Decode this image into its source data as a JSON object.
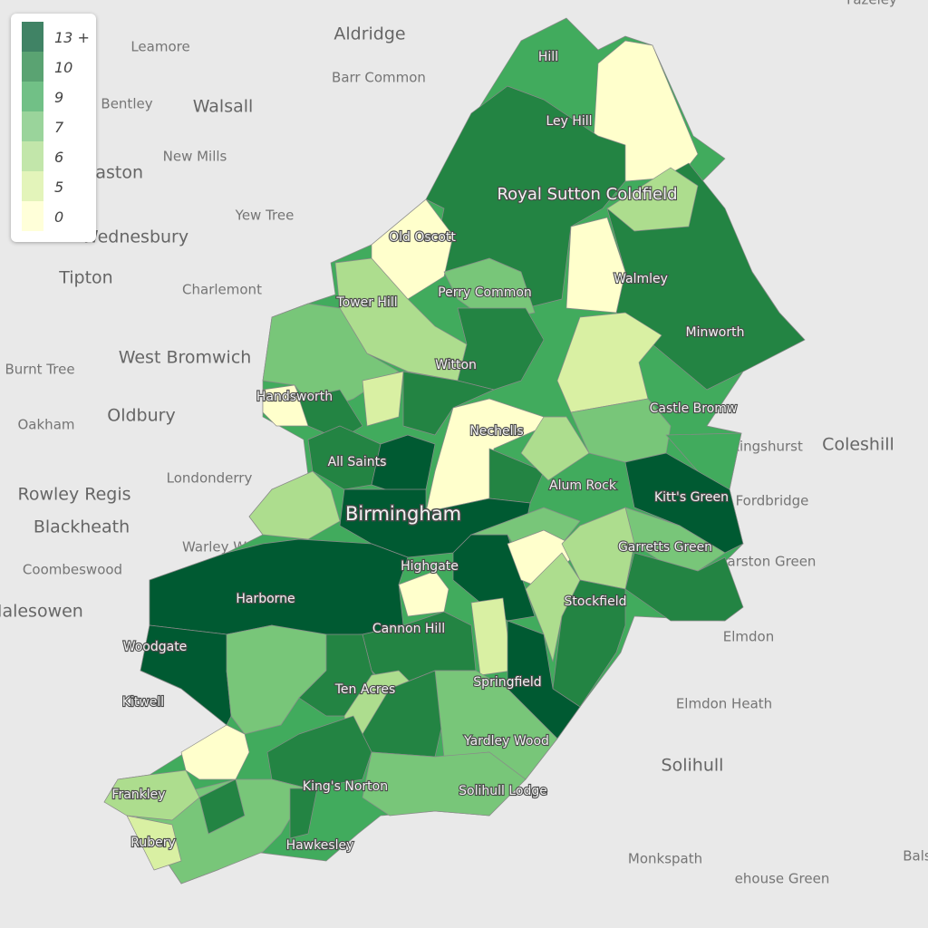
{
  "legend": {
    "items": [
      {
        "label": "13 +",
        "color": "#005a32"
      },
      {
        "label": "10",
        "color": "#238443"
      },
      {
        "label": "9",
        "color": "#41ab5d"
      },
      {
        "label": "7",
        "color": "#78c679"
      },
      {
        "label": "6",
        "color": "#addd8e"
      },
      {
        "label": "5",
        "color": "#d9f0a3"
      },
      {
        "label": "0",
        "color": "#ffffcc"
      }
    ]
  },
  "places": [
    "Fazeley",
    "Leamore",
    "Aldridge",
    "Barr Common",
    "Bentley",
    "Walsall",
    "New Mills",
    "Darlaston",
    "Yew Tree",
    "Wednesbury",
    "Tipton",
    "Charlemont",
    "West Bromwich",
    "Burnt Tree",
    "Oldbury",
    "Oakham",
    "Londonderry",
    "Rowley Regis",
    "Blackheath",
    "Warley Woods",
    "Coombeswood",
    "Halesowen",
    "Coleshill",
    "Kingshurst",
    "Fordbridge",
    "Marston Green",
    "Elmdon",
    "Elmdon Heath",
    "Solihull",
    "Monkspath",
    "ehouse Green",
    "Bals"
  ],
  "districts": [
    "Hill",
    "Ley Hill",
    "Royal Sutton Coldfield",
    "Old Oscott",
    "Walmley",
    "Perry Common",
    "Tower Hill",
    "Minworth",
    "Witton",
    "Handsworth",
    "Castle Bromw",
    "Nechells",
    "All Saints",
    "Alum Rock",
    "Kitt's Green",
    "Birmingham",
    "Garretts Green",
    "Highgate",
    "Harborne",
    "Stockfield",
    "Cannon Hill",
    "Woodgate",
    "Springfield",
    "Ten Acres",
    "Kitwell",
    "Yardley Wood",
    "King's Norton",
    "Frankley",
    "Solihull Lodge",
    "Rubery",
    "Hawkesley"
  ]
}
